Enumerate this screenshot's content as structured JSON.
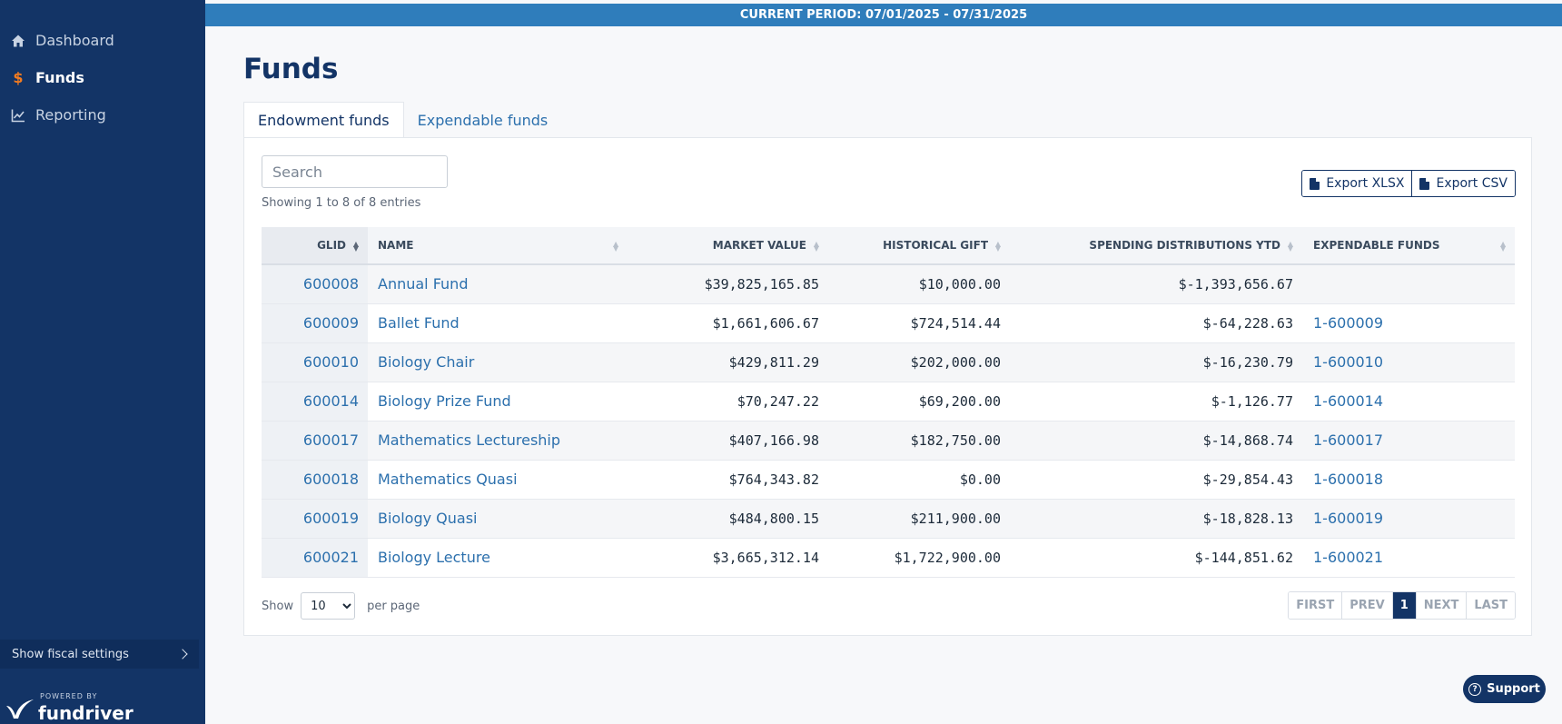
{
  "sidebar": {
    "items": [
      {
        "label": "Dashboard",
        "icon": "home-icon"
      },
      {
        "label": "Funds",
        "icon": "dollar-icon"
      },
      {
        "label": "Reporting",
        "icon": "chart-line-icon"
      }
    ],
    "fiscal_label": "Show fiscal settings",
    "powered_by": "POWERED BY",
    "brand": "fundriver"
  },
  "header": {
    "period": "CURRENT PERIOD: 07/01/2025 - 07/31/2025"
  },
  "main": {
    "title": "Funds",
    "tabs": [
      {
        "label": "Endowment funds",
        "active": true
      },
      {
        "label": "Expendable funds",
        "active": false
      }
    ],
    "search_placeholder": "Search",
    "showing": "Showing 1 to 8 of 8 entries",
    "export_xlsx": "Export XLSX",
    "export_csv": "Export CSV",
    "columns": [
      "GLID",
      "NAME",
      "MARKET VALUE",
      "HISTORICAL GIFT",
      "SPENDING DISTRIBUTIONS YTD",
      "EXPENDABLE FUNDS"
    ],
    "rows": [
      {
        "glid": "600008",
        "name": "Annual Fund",
        "market": "$39,825,165.85",
        "gift": "$10,000.00",
        "spend": "$-1,393,656.67",
        "exp": ""
      },
      {
        "glid": "600009",
        "name": "Ballet Fund",
        "market": "$1,661,606.67",
        "gift": "$724,514.44",
        "spend": "$-64,228.63",
        "exp": "1-600009"
      },
      {
        "glid": "600010",
        "name": "Biology Chair",
        "market": "$429,811.29",
        "gift": "$202,000.00",
        "spend": "$-16,230.79",
        "exp": "1-600010"
      },
      {
        "glid": "600014",
        "name": "Biology Prize Fund",
        "market": "$70,247.22",
        "gift": "$69,200.00",
        "spend": "$-1,126.77",
        "exp": "1-600014"
      },
      {
        "glid": "600017",
        "name": "Mathematics Lectureship",
        "market": "$407,166.98",
        "gift": "$182,750.00",
        "spend": "$-14,868.74",
        "exp": "1-600017"
      },
      {
        "glid": "600018",
        "name": "Mathematics Quasi",
        "market": "$764,343.82",
        "gift": "$0.00",
        "spend": "$-29,854.43",
        "exp": "1-600018"
      },
      {
        "glid": "600019",
        "name": "Biology Quasi",
        "market": "$484,800.15",
        "gift": "$211,900.00",
        "spend": "$-18,828.13",
        "exp": "1-600019"
      },
      {
        "glid": "600021",
        "name": "Biology Lecture",
        "market": "$3,665,312.14",
        "gift": "$1,722,900.00",
        "spend": "$-144,851.62",
        "exp": "1-600021"
      }
    ],
    "per_page_show": "Show",
    "per_page_value": "10",
    "per_page_suffix": "per page",
    "pager": [
      "FIRST",
      "PREV",
      "1",
      "NEXT",
      "LAST"
    ],
    "current_page": "1"
  },
  "support_label": "Support",
  "colors": {
    "sidebar": "#133466",
    "accent": "#2f7dbb",
    "link": "#2c70ad",
    "active_icon": "#f47c20"
  }
}
